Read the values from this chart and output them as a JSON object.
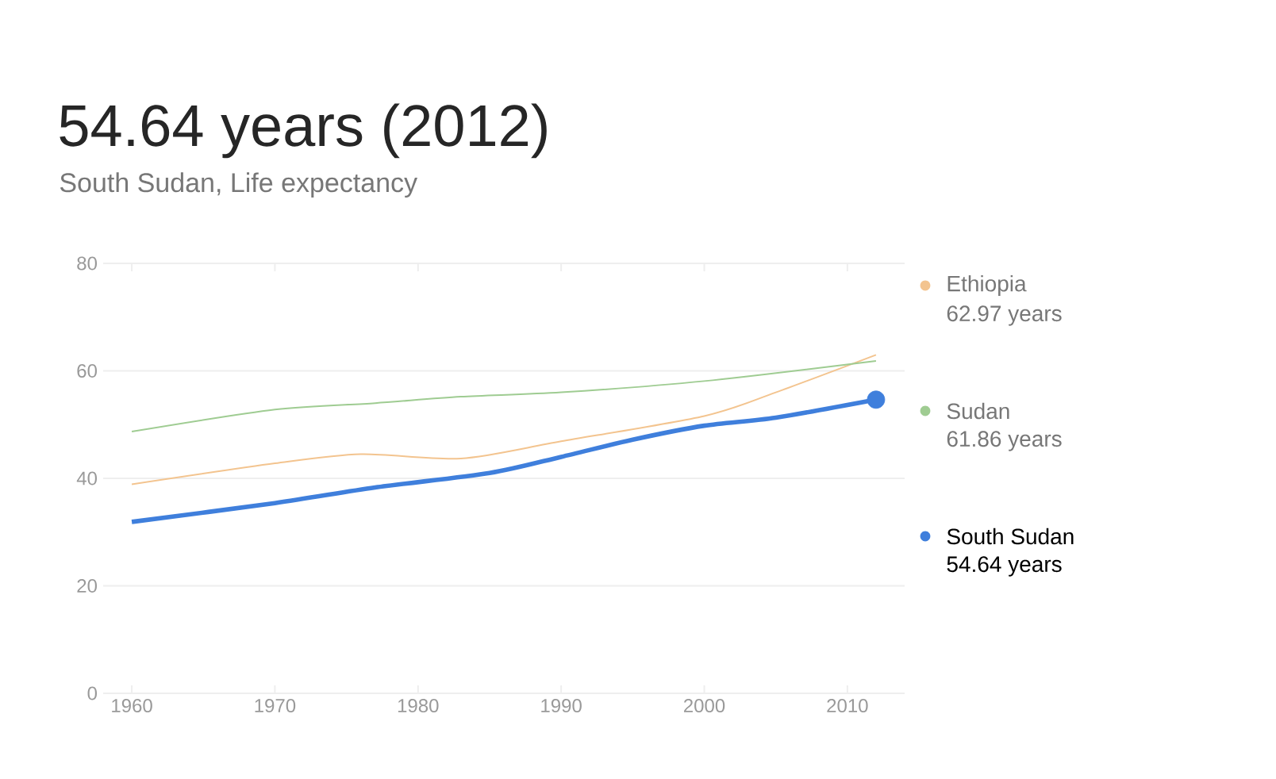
{
  "chart_data": {
    "type": "line",
    "title": "54.64 years (2012)",
    "subtitle": "South Sudan, Life expectancy",
    "series": [
      {
        "name": "Ethiopia",
        "color": "#f3c48f",
        "x": [
          1960,
          1970,
          1976,
          1983,
          1990,
          2000,
          2005,
          2012
        ],
        "values": [
          38.9,
          42.8,
          44.5,
          43.7,
          46.9,
          51.6,
          56,
          62.97
        ]
      },
      {
        "name": "Sudan",
        "color": "#9fcc92",
        "x": [
          1960,
          1970,
          1977,
          1983,
          1990,
          2000,
          2012
        ],
        "values": [
          48.7,
          52.8,
          54,
          55.2,
          56,
          58.1,
          61.86
        ]
      },
      {
        "name": "South Sudan",
        "color": "#3f7fdc",
        "x": [
          1960,
          1970,
          1977,
          1985,
          1990,
          1995,
          2000,
          2005,
          2012
        ],
        "values": [
          31.9,
          35.4,
          38.3,
          41,
          44,
          47.2,
          49.8,
          51.3,
          54.64
        ]
      },
      {
        "type": "scatter",
        "marker": "circle",
        "color": "#3f7fdc",
        "x": [
          2012
        ],
        "values": [
          54.64
        ]
      }
    ],
    "annotations": [
      "62.97 years",
      "61.86 years",
      "54.64 years"
    ],
    "xlim": [
      1958,
      2014
    ],
    "xticks": [
      1960,
      1970,
      1980,
      1990,
      2000,
      2010
    ],
    "ylim": [
      0,
      80
    ],
    "yticks": [
      0,
      20,
      40,
      60,
      80
    ],
    "grid": "y",
    "legend": "right"
  }
}
